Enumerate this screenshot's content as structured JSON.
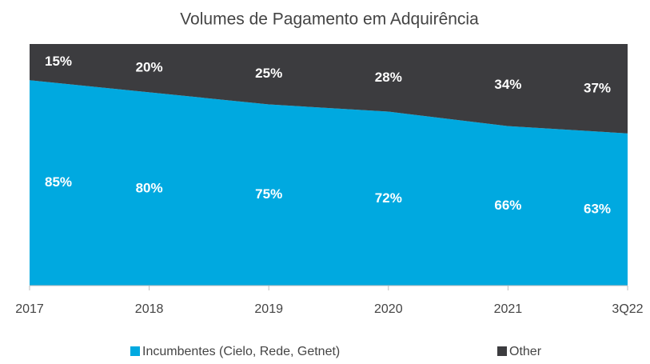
{
  "chart_data": {
    "type": "stacked_area",
    "title": "Volumes de Pagamento em Adquirência",
    "categories": [
      "2017",
      "2018",
      "2019",
      "2020",
      "2021",
      "3Q22"
    ],
    "series": [
      {
        "name": "Incumbentes (Cielo, Rede, Getnet)",
        "color": "#00a9e0",
        "values": [
          85,
          80,
          75,
          72,
          66,
          63
        ],
        "value_labels": [
          "85%",
          "80%",
          "75%",
          "72%",
          "66%",
          "63%"
        ]
      },
      {
        "name": "Other",
        "color": "#3c3c3f",
        "values": [
          15,
          20,
          25,
          28,
          34,
          37
        ],
        "value_labels": [
          "15%",
          "20%",
          "25%",
          "28%",
          "34%",
          "37%"
        ]
      }
    ],
    "ylim": [
      0,
      100
    ],
    "legend": "bottom"
  }
}
